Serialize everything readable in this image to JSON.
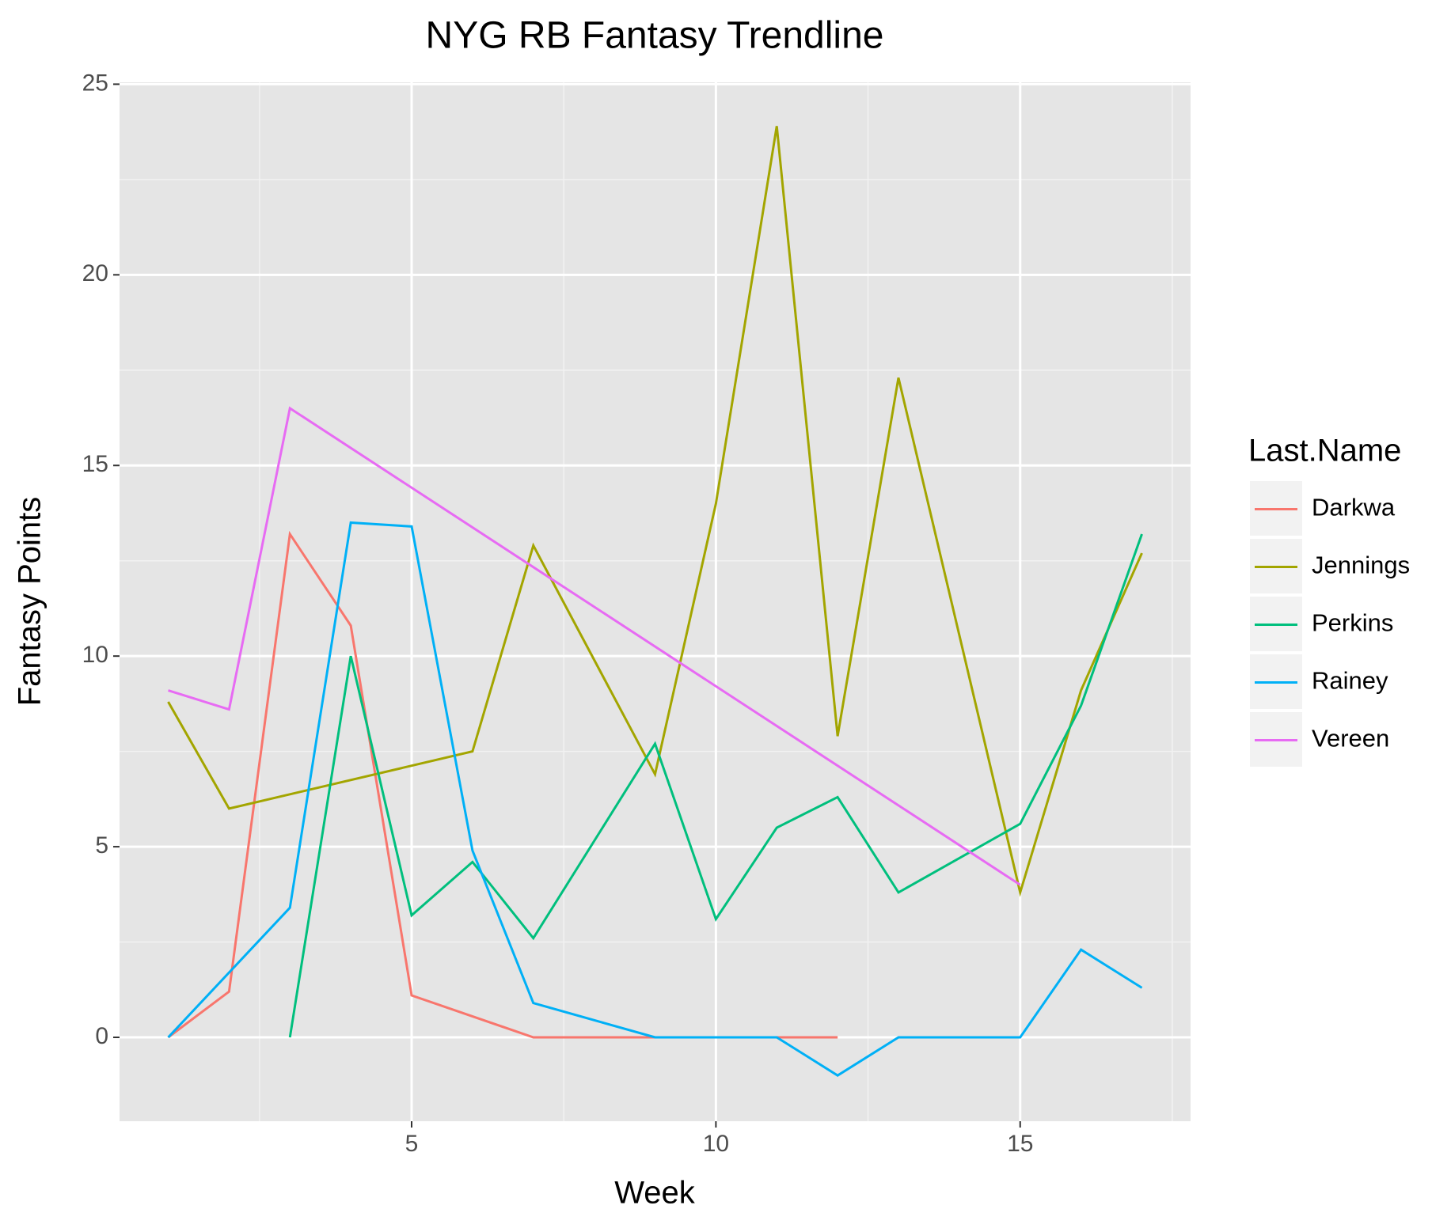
{
  "chart_data": {
    "type": "line",
    "title": "NYG RB Fantasy Trendline",
    "x_label": "Week",
    "y_label": "Fantasy Points",
    "legend_title": "Last.Name",
    "legend_position": "right",
    "grid": true,
    "xlim": [
      0.2,
      17.8
    ],
    "xticks": [
      5,
      10,
      15
    ],
    "ylim": [
      -2.2,
      25.05
    ],
    "yticks": [
      0,
      5,
      10,
      15,
      20,
      25
    ],
    "series": [
      {
        "name": "Darkwa",
        "color": "#F8766D",
        "x": [
          1,
          2,
          3,
          4,
          5,
          7,
          9,
          10,
          11,
          12
        ],
        "values": [
          0,
          1.2,
          13.2,
          10.8,
          1.1,
          0,
          0,
          0,
          0,
          0
        ]
      },
      {
        "name": "Jennings",
        "color": "#A3A500",
        "x": [
          1,
          2,
          6,
          7,
          9,
          10,
          11,
          12,
          13,
          15,
          16,
          17
        ],
        "values": [
          8.8,
          6.0,
          7.5,
          12.9,
          6.9,
          14.0,
          23.9,
          7.9,
          17.3,
          3.8,
          9.1,
          12.7
        ]
      },
      {
        "name": "Perkins",
        "color": "#00BF7D",
        "x": [
          3,
          4,
          5,
          6,
          7,
          9,
          10,
          11,
          12,
          13,
          15,
          16,
          17
        ],
        "values": [
          0,
          10.0,
          3.2,
          4.6,
          2.6,
          7.7,
          3.1,
          5.5,
          6.3,
          3.8,
          5.6,
          8.7,
          13.2
        ]
      },
      {
        "name": "Rainey",
        "color": "#00B0F6",
        "x": [
          1,
          3,
          4,
          5,
          6,
          7,
          9,
          10,
          11,
          12,
          13,
          15,
          16,
          17
        ],
        "values": [
          0,
          3.4,
          13.5,
          13.4,
          4.9,
          0.9,
          0,
          0,
          0,
          -1.0,
          0,
          0,
          2.3,
          1.3
        ]
      },
      {
        "name": "Vereen",
        "color": "#E76BF3",
        "x": [
          1,
          2,
          3,
          15
        ],
        "values": [
          9.1,
          8.6,
          16.5,
          4.0
        ]
      }
    ]
  }
}
